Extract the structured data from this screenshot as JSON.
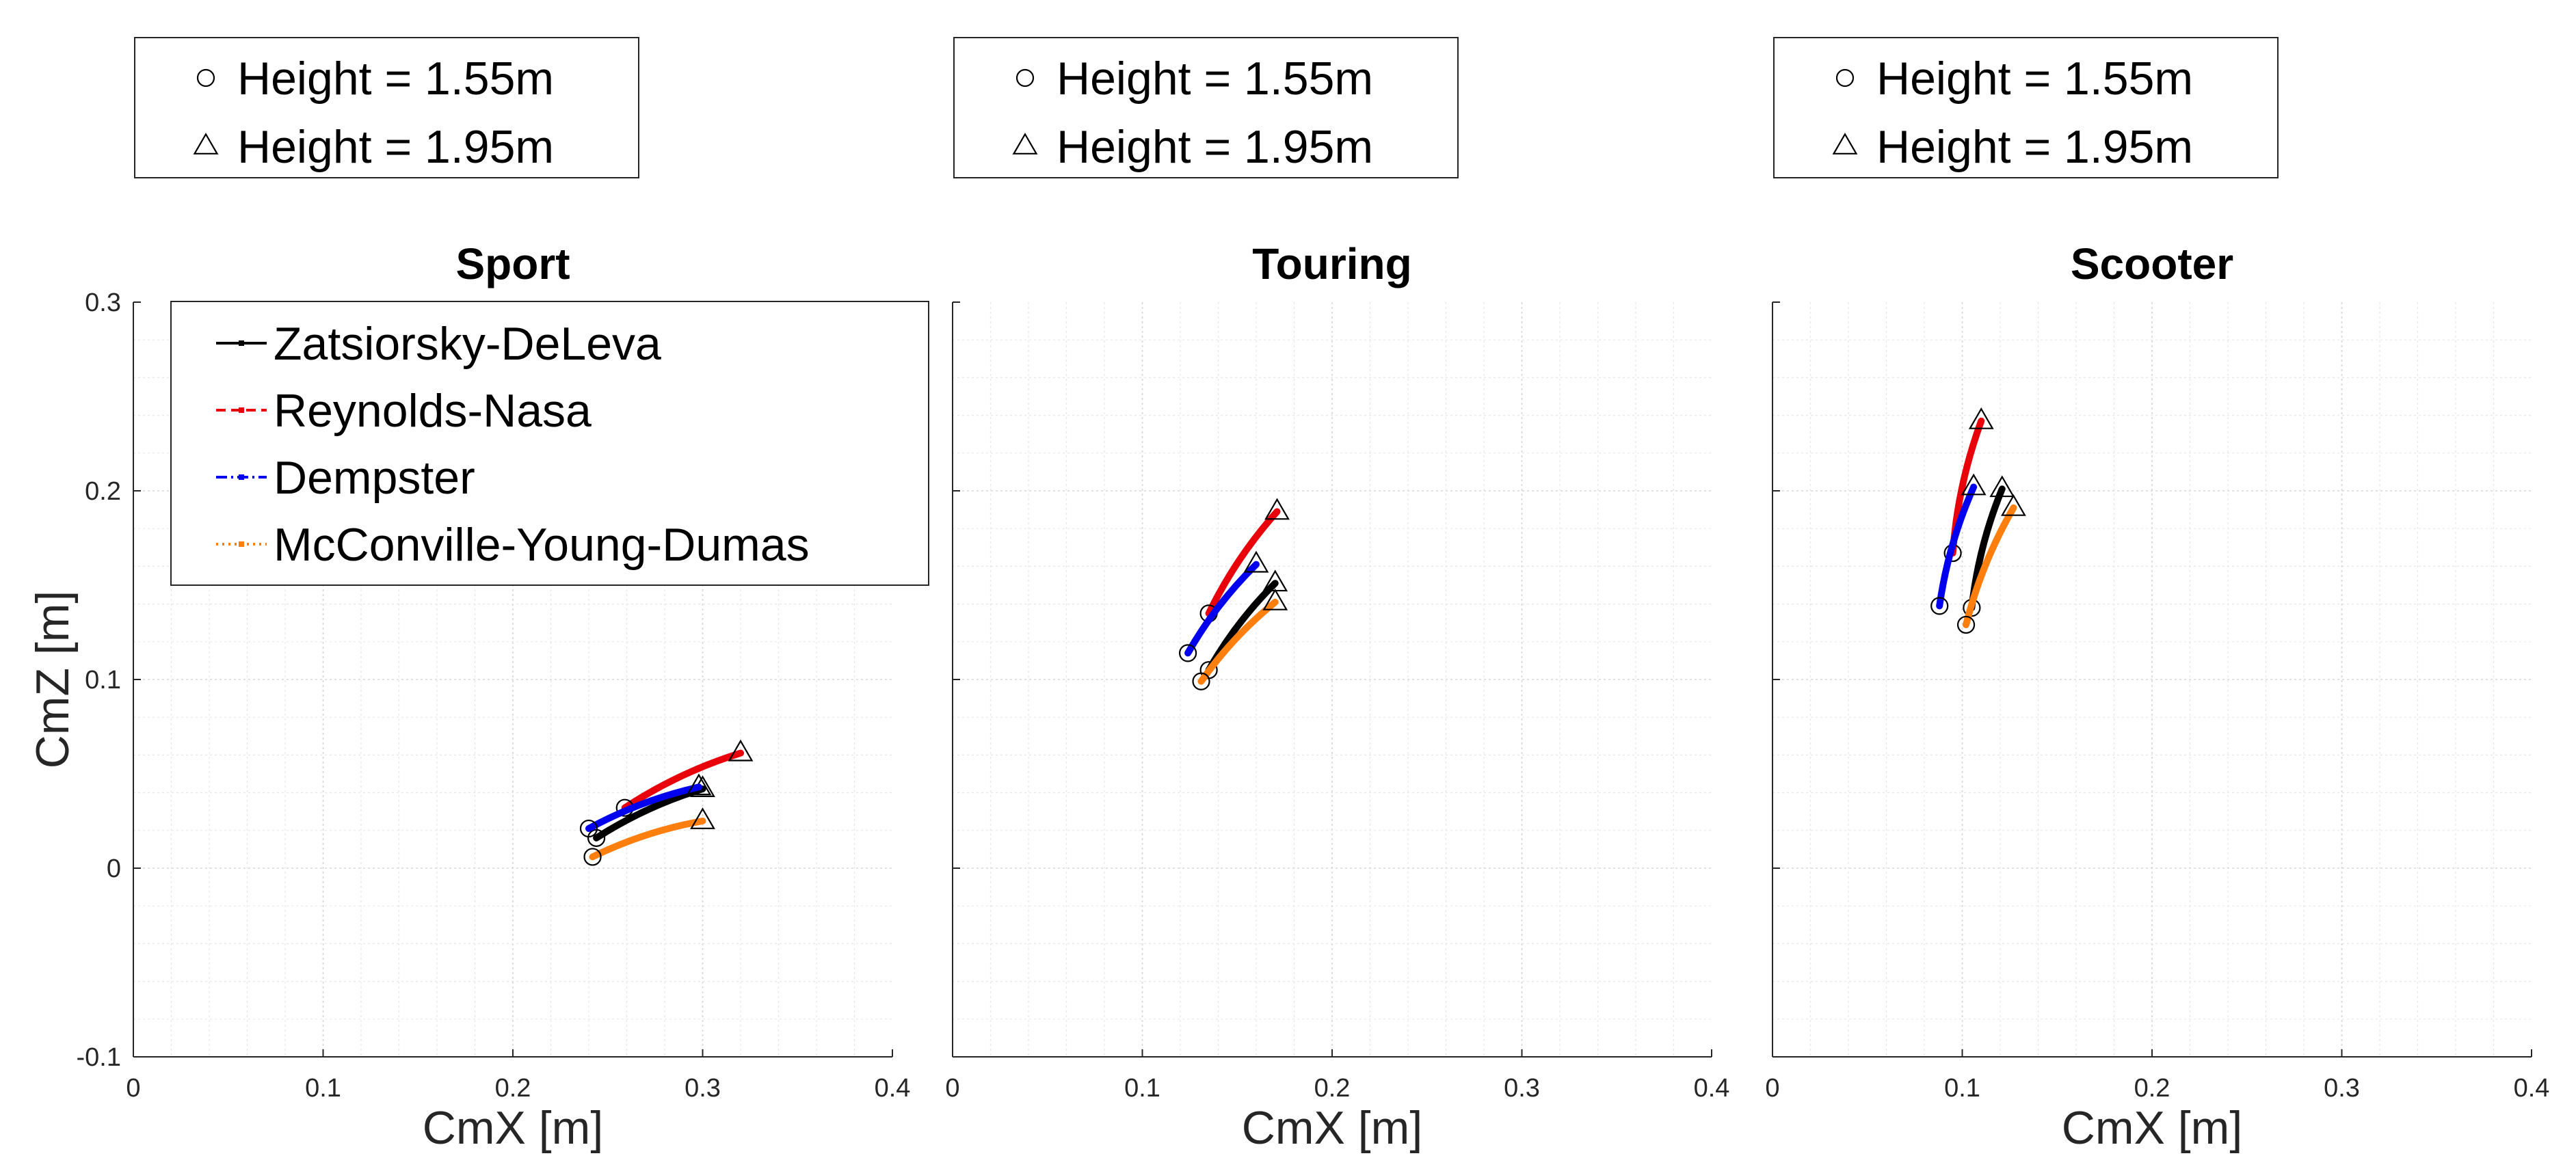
{
  "figure": {
    "height_legend": {
      "entries": [
        {
          "marker": "circle",
          "label": "Height = 1.55m"
        },
        {
          "marker": "triangle",
          "label": "Height = 1.95m"
        }
      ]
    },
    "model_legend": {
      "entries": [
        {
          "series": "Zatsiorsky-DeLeva",
          "color": "#000000",
          "dash": "solid"
        },
        {
          "series": "Reynolds-Nasa",
          "color": "#e8000b",
          "dash": "dashed"
        },
        {
          "series": "Dempster",
          "color": "#0000ee",
          "dash": "dashdot"
        },
        {
          "series": "McConville-Young-Dumas",
          "color": "#ff7f0e",
          "dash": "dotted"
        }
      ]
    }
  },
  "chart_data": [
    {
      "type": "line",
      "title": "Sport",
      "xlabel": "CmX [m]",
      "ylabel": "CmZ [m]",
      "xlim": [
        0,
        0.4
      ],
      "ylim": [
        -0.1,
        0.3
      ],
      "xticks": [
        "0",
        "0.1",
        "0.2",
        "0.3",
        "0.4"
      ],
      "yticks": [
        "-0.1",
        "0",
        "0.1",
        "0.2",
        "0.3"
      ],
      "grid": true,
      "series": [
        {
          "name": "Zatsiorsky-DeLeva",
          "color": "#000000",
          "start": [
            0.244,
            0.016
          ],
          "end": [
            0.3,
            0.042
          ]
        },
        {
          "name": "Reynolds-Nasa",
          "color": "#e8000b",
          "start": [
            0.259,
            0.032
          ],
          "end": [
            0.32,
            0.061
          ]
        },
        {
          "name": "Dempster",
          "color": "#0000ee",
          "start": [
            0.24,
            0.021
          ],
          "end": [
            0.298,
            0.043
          ]
        },
        {
          "name": "McConville-Young-Dumas",
          "color": "#ff7f0e",
          "start": [
            0.242,
            0.006
          ],
          "end": [
            0.3,
            0.025
          ]
        }
      ]
    },
    {
      "type": "line",
      "title": "Touring",
      "xlabel": "CmX [m]",
      "ylabel": "",
      "xlim": [
        0,
        0.4
      ],
      "ylim": [
        -0.1,
        0.3
      ],
      "xticks": [
        "0",
        "0.1",
        "0.2",
        "0.3",
        "0.4"
      ],
      "yticks": [],
      "grid": true,
      "series": [
        {
          "name": "Zatsiorsky-DeLeva",
          "color": "#000000",
          "start": [
            0.135,
            0.105
          ],
          "end": [
            0.17,
            0.151
          ]
        },
        {
          "name": "Reynolds-Nasa",
          "color": "#e8000b",
          "start": [
            0.135,
            0.135
          ],
          "end": [
            0.171,
            0.189
          ]
        },
        {
          "name": "Dempster",
          "color": "#0000ee",
          "start": [
            0.124,
            0.114
          ],
          "end": [
            0.16,
            0.161
          ]
        },
        {
          "name": "McConville-Young-Dumas",
          "color": "#ff7f0e",
          "start": [
            0.131,
            0.099
          ],
          "end": [
            0.17,
            0.141
          ]
        }
      ]
    },
    {
      "type": "line",
      "title": "Scooter",
      "xlabel": "CmX [m]",
      "ylabel": "",
      "xlim": [
        0,
        0.4
      ],
      "ylim": [
        -0.1,
        0.3
      ],
      "xticks": [
        "0",
        "0.1",
        "0.2",
        "0.3",
        "0.4"
      ],
      "yticks": [],
      "grid": true,
      "series": [
        {
          "name": "Zatsiorsky-DeLeva",
          "color": "#000000",
          "start": [
            0.105,
            0.138
          ],
          "end": [
            0.121,
            0.201
          ]
        },
        {
          "name": "Reynolds-Nasa",
          "color": "#e8000b",
          "start": [
            0.095,
            0.167
          ],
          "end": [
            0.11,
            0.237
          ]
        },
        {
          "name": "Dempster",
          "color": "#0000ee",
          "start": [
            0.088,
            0.139
          ],
          "end": [
            0.106,
            0.202
          ]
        },
        {
          "name": "McConville-Young-Dumas",
          "color": "#ff7f0e",
          "start": [
            0.102,
            0.129
          ],
          "end": [
            0.127,
            0.191
          ]
        }
      ]
    }
  ]
}
